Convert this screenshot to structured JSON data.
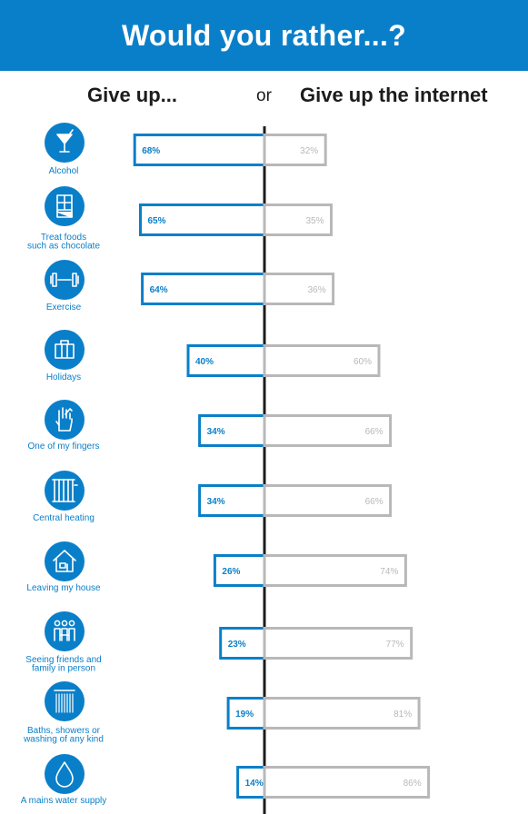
{
  "header": {
    "title": "Would you rather...?",
    "left_heading": "Give up...",
    "or_label": "or",
    "right_heading": "Give up the internet"
  },
  "colors": {
    "brand_blue": "#0a7fc9",
    "grey": "#b8b8b8",
    "axis": "#1c1c1c"
  },
  "chart_data": {
    "type": "bar",
    "orientation": "diverging-horizontal",
    "categories": [
      {
        "label": [
          "Alcohol"
        ],
        "icon": "cocktail-icon"
      },
      {
        "label": [
          "Treat foods",
          "such as chocolate"
        ],
        "icon": "chocolate-bar-icon"
      },
      {
        "label": [
          "Exercise"
        ],
        "icon": "dumbbell-icon"
      },
      {
        "label": [
          "Holidays"
        ],
        "icon": "suitcase-icon"
      },
      {
        "label": [
          "One of my fingers"
        ],
        "icon": "hand-icon"
      },
      {
        "label": [
          "Central heating"
        ],
        "icon": "radiator-icon"
      },
      {
        "label": [
          "Leaving my house"
        ],
        "icon": "house-icon"
      },
      {
        "label": [
          "Seeing friends and",
          "family in person"
        ],
        "icon": "people-icon"
      },
      {
        "label": [
          "Baths, showers or",
          "washing of any kind"
        ],
        "icon": "shower-icon"
      },
      {
        "label": [
          "A mains water supply"
        ],
        "icon": "water-drop-icon"
      }
    ],
    "series": [
      {
        "name": "Give up...",
        "values": [
          68,
          65,
          64,
          40,
          34,
          34,
          26,
          23,
          19,
          14
        ]
      },
      {
        "name": "Give up the internet",
        "values": [
          32,
          35,
          36,
          60,
          66,
          66,
          74,
          77,
          81,
          86
        ]
      }
    ],
    "value_suffix": "%"
  }
}
